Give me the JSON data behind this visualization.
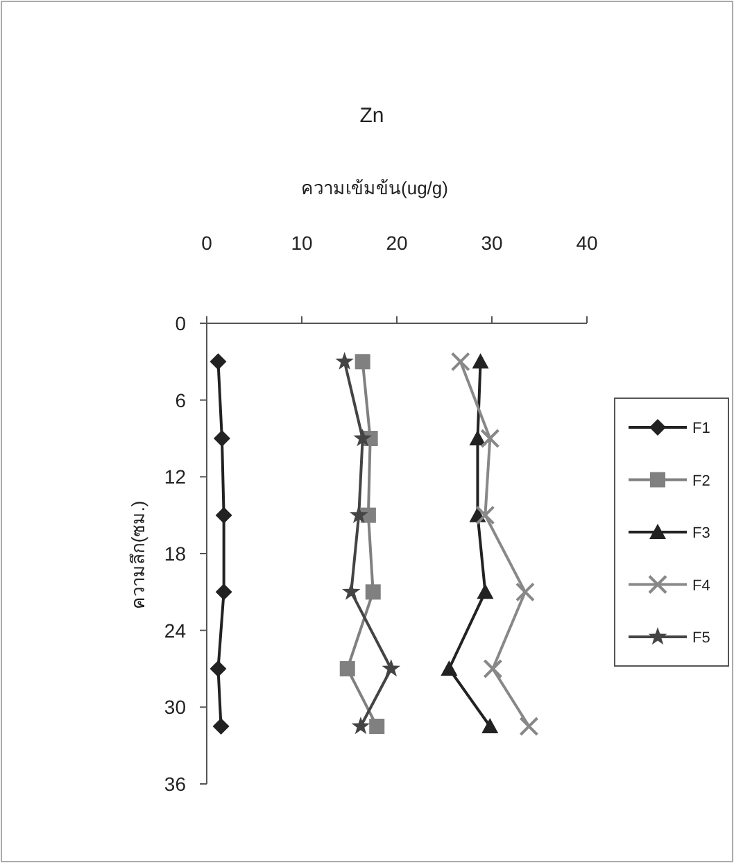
{
  "chart_data": {
    "type": "line",
    "title": "Zn",
    "xlabel": "ความเข้มข้น(ug/g)",
    "ylabel": "ความลึก(ซม.)",
    "xlim": [
      0,
      40
    ],
    "xticks": [
      0,
      10,
      20,
      30,
      40
    ],
    "ylim": [
      36,
      0
    ],
    "yticks": [
      0,
      6,
      12,
      18,
      24,
      30,
      36
    ],
    "grid": false,
    "legend": "right",
    "line_style": "solid",
    "series": [
      {
        "name": "F1",
        "color": "#222222",
        "marker": "diamond",
        "x": [
          1.2,
          1.6,
          1.8,
          1.8,
          1.2,
          1.5
        ],
        "values": [
          3,
          9,
          15,
          21,
          27,
          31.5
        ]
      },
      {
        "name": "F2",
        "color": "#808080",
        "marker": "square",
        "x": [
          16.4,
          17.2,
          17.0,
          17.5,
          14.8,
          17.9
        ],
        "values": [
          3,
          9,
          15,
          21,
          27,
          31.5
        ]
      },
      {
        "name": "F3",
        "color": "#222222",
        "marker": "triangle",
        "x": [
          28.8,
          28.5,
          28.5,
          29.3,
          25.5,
          29.8
        ],
        "values": [
          3,
          9,
          15,
          21,
          27,
          31.5
        ]
      },
      {
        "name": "F4",
        "color": "#888888",
        "marker": "cross",
        "x": [
          26.7,
          29.8,
          29.3,
          33.5,
          30.1,
          33.9
        ],
        "values": [
          3,
          9,
          15,
          21,
          27,
          31.5
        ]
      },
      {
        "name": "F5",
        "color": "#444444",
        "marker": "star",
        "x": [
          14.5,
          16.4,
          16.0,
          15.2,
          19.4,
          16.2
        ],
        "values": [
          3,
          9,
          15,
          21,
          27,
          31.5
        ]
      }
    ]
  }
}
